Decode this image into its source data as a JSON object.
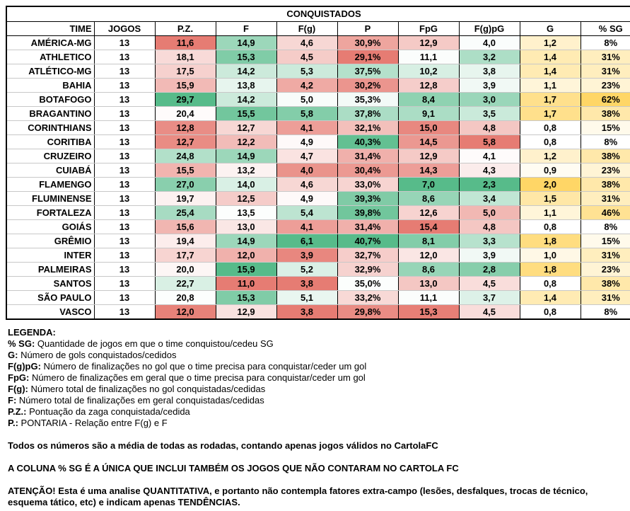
{
  "table": {
    "title": "CONQUISTADOS",
    "headers": [
      "TIME",
      "JOGOS",
      "P.Z.",
      "F",
      "F(g)",
      "P",
      "FpG",
      "F(g)pG",
      "G",
      "% SG"
    ],
    "rows": [
      [
        "AMÉRICA-MG",
        "13",
        "11,6",
        "14,9",
        "4,6",
        "30,9%",
        "12,9",
        "4,0",
        "1,2",
        "8%"
      ],
      [
        "ATHLETICO",
        "13",
        "18,1",
        "15,3",
        "4,5",
        "29,1%",
        "11,1",
        "3,2",
        "1,4",
        "31%"
      ],
      [
        "ATLÉTICO-MG",
        "13",
        "17,5",
        "14,2",
        "5,3",
        "37,5%",
        "10,2",
        "3,8",
        "1,4",
        "31%"
      ],
      [
        "BAHIA",
        "13",
        "15,9",
        "13,8",
        "4,2",
        "30,2%",
        "12,8",
        "3,9",
        "1,1",
        "23%"
      ],
      [
        "BOTAFOGO",
        "13",
        "29,7",
        "14,2",
        "5,0",
        "35,3%",
        "8,4",
        "3,0",
        "1,7",
        "62%"
      ],
      [
        "BRAGANTINO",
        "13",
        "20,4",
        "15,5",
        "5,8",
        "37,8%",
        "9,1",
        "3,5",
        "1,7",
        "38%"
      ],
      [
        "CORINTHIANS",
        "13",
        "12,8",
        "12,7",
        "4,1",
        "32,1%",
        "15,0",
        "4,8",
        "0,8",
        "15%"
      ],
      [
        "CORITIBA",
        "13",
        "12,7",
        "12,2",
        "4,9",
        "40,3%",
        "14,5",
        "5,8",
        "0,8",
        "8%"
      ],
      [
        "CRUZEIRO",
        "13",
        "24,8",
        "14,9",
        "4,7",
        "31,4%",
        "12,9",
        "4,1",
        "1,2",
        "38%"
      ],
      [
        "CUIABÁ",
        "13",
        "15,5",
        "13,2",
        "4,0",
        "30,4%",
        "14,3",
        "4,3",
        "0,9",
        "23%"
      ],
      [
        "FLAMENGO",
        "13",
        "27,0",
        "14,0",
        "4,6",
        "33,0%",
        "7,0",
        "2,3",
        "2,0",
        "38%"
      ],
      [
        "FLUMINENSE",
        "13",
        "19,7",
        "12,5",
        "4,9",
        "39,3%",
        "8,6",
        "3,4",
        "1,5",
        "31%"
      ],
      [
        "FORTALEZA",
        "13",
        "25,4",
        "13,5",
        "5,4",
        "39,8%",
        "12,6",
        "5,0",
        "1,1",
        "46%"
      ],
      [
        "GOIÁS",
        "13",
        "15,6",
        "13,0",
        "4,1",
        "31,4%",
        "15,4",
        "4,8",
        "0,8",
        "8%"
      ],
      [
        "GRÊMIO",
        "13",
        "19,4",
        "14,9",
        "6,1",
        "40,7%",
        "8,1",
        "3,3",
        "1,8",
        "15%"
      ],
      [
        "INTER",
        "13",
        "17,7",
        "12,0",
        "3,9",
        "32,7%",
        "12,0",
        "3,9",
        "1,0",
        "31%"
      ],
      [
        "PALMEIRAS",
        "13",
        "20,0",
        "15,9",
        "5,2",
        "32,9%",
        "8,6",
        "2,8",
        "1,8",
        "23%"
      ],
      [
        "SANTOS",
        "13",
        "22,7",
        "11,0",
        "3,8",
        "35,0%",
        "13,0",
        "4,5",
        "0,8",
        "38%"
      ],
      [
        "SÃO PAULO",
        "13",
        "20,8",
        "15,3",
        "5,1",
        "33,2%",
        "11,1",
        "3,7",
        "1,4",
        "31%"
      ],
      [
        "VASCO",
        "13",
        "12,0",
        "12,9",
        "3,8",
        "29,8%",
        "15,3",
        "4,5",
        "0,8",
        "8%"
      ]
    ],
    "colors": {
      "high": "#57bb8a",
      "mid": "#ffffff",
      "low": "#e67c73",
      "gold_high": "#ffd666",
      "gold_low": "#ffffff"
    }
  },
  "legend": {
    "title": "LEGENDA:",
    "items": [
      {
        "key": "% SG:",
        "text": " Quantidade de jogos em que o time conquistou/cedeu SG"
      },
      {
        "key": "G:",
        "text": " Número de gols conquistados/cedidos"
      },
      {
        "key": "F(g)pG:",
        "text": " Número de finalizações no gol que o time precisa para conquistar/ceder um gol"
      },
      {
        "key": "FpG:",
        "text": " Número de finalizações em geral que o time precisa para conquistar/ceder um gol"
      },
      {
        "key": "F(g):",
        "text": " Número total de finalizações no gol conquistadas/cedidas"
      },
      {
        "key": "F:",
        "text": " Número total de finalizações em geral conquistadas/cedidas"
      },
      {
        "key": "P.Z.:",
        "text": " Pontuação da zaga conquistada/cedida"
      },
      {
        "key": "P.:",
        "text": " PONTARIA - Relação entre F(g) e F"
      }
    ],
    "notes": [
      "Todos os números são a média de todas as rodadas, contando apenas jogos válidos no CartolaFC",
      "A COLUNA % SG É A ÚNICA QUE INCLUI TAMBÉM OS JOGOS QUE NÃO CONTARAM NO CARTOLA FC",
      "ATENÇÃO! Esta é uma analise QUANTITATIVA, e portanto não contempla fatores extra-campo (lesões, desfalques, trocas de técnico, esquema tático, etc) e indicam apenas TENDÊNCIAS."
    ]
  }
}
